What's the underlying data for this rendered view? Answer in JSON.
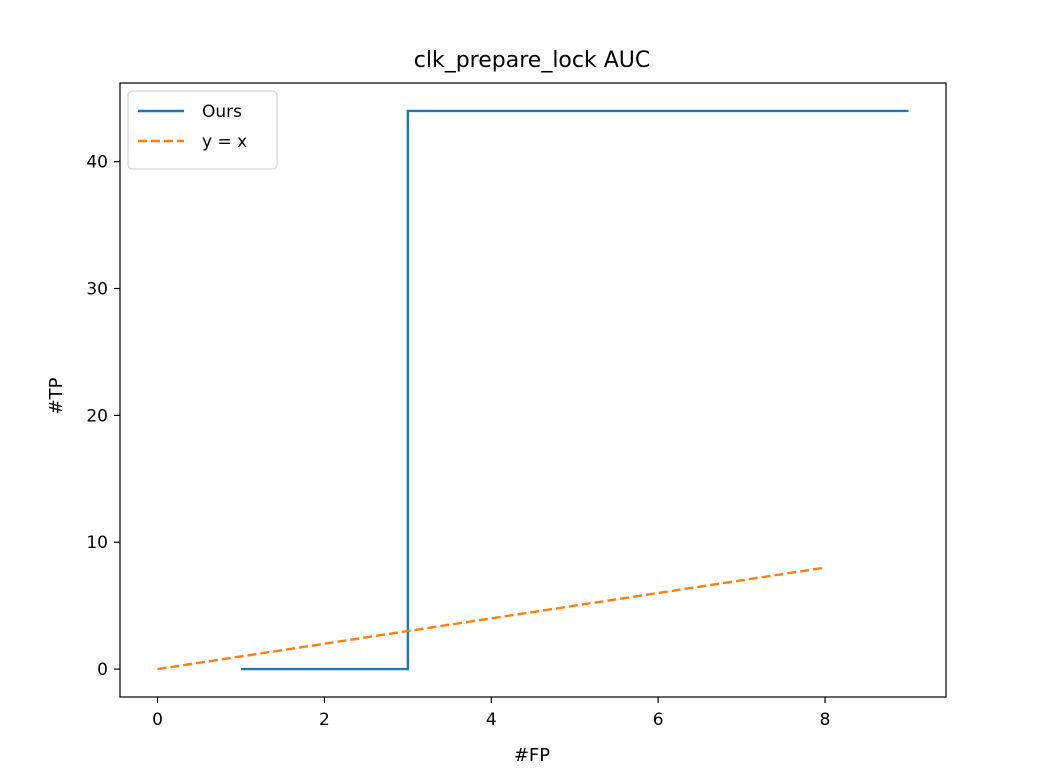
{
  "chart_data": {
    "type": "line",
    "title": "clk_prepare_lock AUC",
    "xlabel": "#FP",
    "ylabel": "#TP",
    "xlim": [
      -0.45,
      9.45
    ],
    "ylim": [
      -2.2,
      46.2
    ],
    "xticks": [
      0,
      2,
      4,
      6,
      8
    ],
    "yticks": [
      0,
      10,
      20,
      30,
      40
    ],
    "grid": false,
    "legend": "top-left",
    "series": [
      {
        "name": "Ours",
        "color": "#1f77b4",
        "style": "solid",
        "x": [
          1,
          3,
          3,
          9
        ],
        "y": [
          0,
          0,
          44,
          44
        ]
      },
      {
        "name": "y = x",
        "color": "#ff7f0e",
        "style": "dashed",
        "x": [
          0,
          8
        ],
        "y": [
          0,
          8
        ]
      }
    ]
  }
}
